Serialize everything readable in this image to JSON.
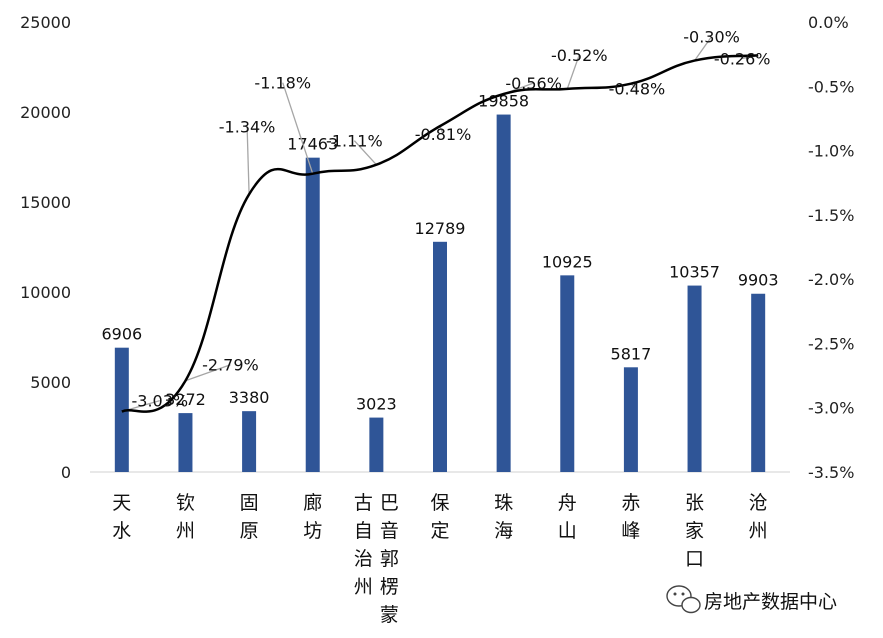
{
  "chart_data": {
    "type": "bar",
    "categories": [
      "天水",
      "钦州",
      "固原",
      "廊坊",
      "巴音郭楞蒙古自治州",
      "保定",
      "珠海",
      "舟山",
      "赤峰",
      "张家口",
      "沧州"
    ],
    "category_lines": [
      [
        "天水"
      ],
      [
        "钦州"
      ],
      [
        "固原"
      ],
      [
        "廊坊"
      ],
      [
        "巴音郭楞蒙",
        "古自治州"
      ],
      [
        "保定"
      ],
      [
        "珠海"
      ],
      [
        "舟山"
      ],
      [
        "赤峰"
      ],
      [
        "张家口"
      ],
      [
        "沧州"
      ]
    ],
    "series": [
      {
        "type": "bar",
        "axis": "left",
        "color": "#2f5597",
        "values": [
          6906,
          3272,
          3380,
          17463,
          3023,
          12789,
          19858,
          10925,
          5817,
          10357,
          9903
        ],
        "labels": [
          "6906",
          "3272",
          "3380",
          "17463",
          "3023",
          "12789",
          "19858",
          "10925",
          "5817",
          "10357",
          "9903"
        ]
      },
      {
        "type": "line",
        "axis": "right",
        "color": "#000000",
        "values": [
          -3.03,
          -2.79,
          -1.34,
          -1.18,
          -1.11,
          -0.81,
          -0.56,
          -0.52,
          -0.48,
          -0.3,
          -0.26
        ],
        "labels": [
          "-3.03%",
          "-2.79%",
          "-1.34%",
          "-1.18%",
          "-1.11%",
          "-0.81%",
          "-0.56%",
          "-0.52%",
          "-0.48%",
          "-0.30%",
          "-0.26%"
        ]
      }
    ],
    "left_axis": {
      "ylim": [
        0,
        25000
      ],
      "ticks": [
        "0",
        "5000",
        "10000",
        "15000",
        "20000",
        "25000"
      ]
    },
    "right_axis": {
      "ylim": [
        -3.5,
        0
      ],
      "ticks": [
        "-3.5%",
        "-3.0%",
        "-2.5%",
        "-2.0%",
        "-1.5%",
        "-1.0%",
        "-0.5%",
        "0.0%"
      ]
    },
    "grid": false,
    "legend": "none"
  },
  "watermark": {
    "text": "房地产数据中心",
    "icon": "wechat-icon"
  }
}
